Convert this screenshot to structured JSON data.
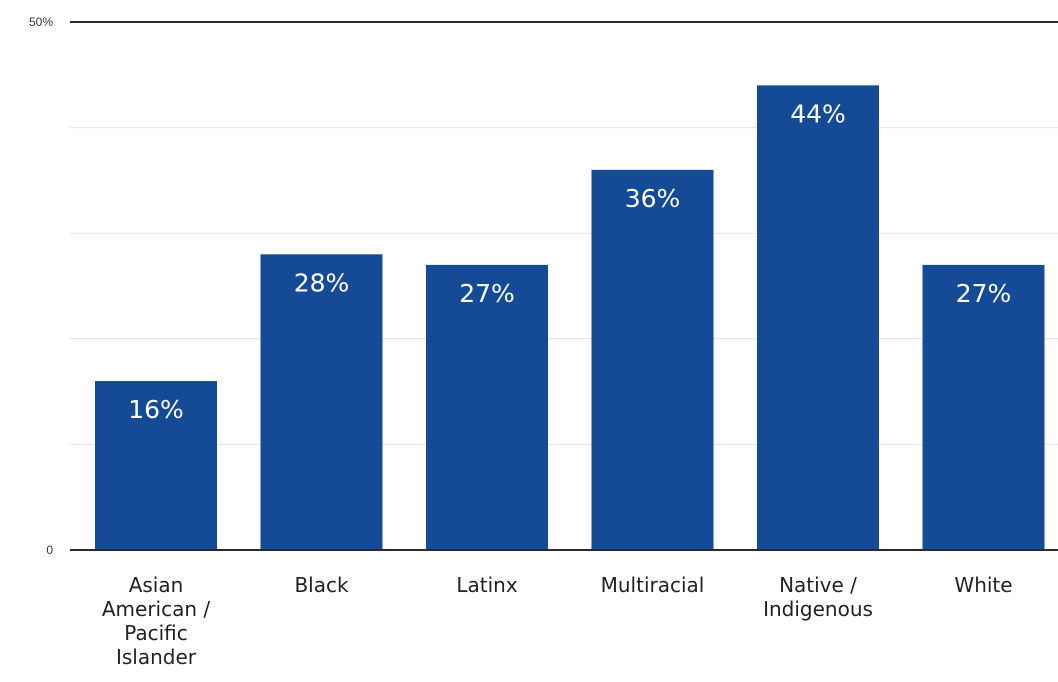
{
  "chart_data": {
    "type": "bar",
    "categories": [
      [
        "Asian",
        "American /",
        "Pacific",
        "Islander"
      ],
      [
        "Black"
      ],
      [
        "Latinx"
      ],
      [
        "Multiracial"
      ],
      [
        "Native /",
        "Indigenous"
      ],
      [
        "White"
      ]
    ],
    "values": [
      16,
      28,
      27,
      36,
      44,
      27
    ],
    "data_labels": [
      "16%",
      "28%",
      "27%",
      "36%",
      "44%",
      "27%"
    ],
    "ylim": [
      0,
      50
    ],
    "y_tick_labels": [
      "0",
      "50%"
    ],
    "grid": true,
    "colors": {
      "bar": "#154b96",
      "data_label": "#ffffff",
      "grid": "#e2e2e2",
      "axis": "#2b2b2b",
      "text": "#222222"
    }
  }
}
